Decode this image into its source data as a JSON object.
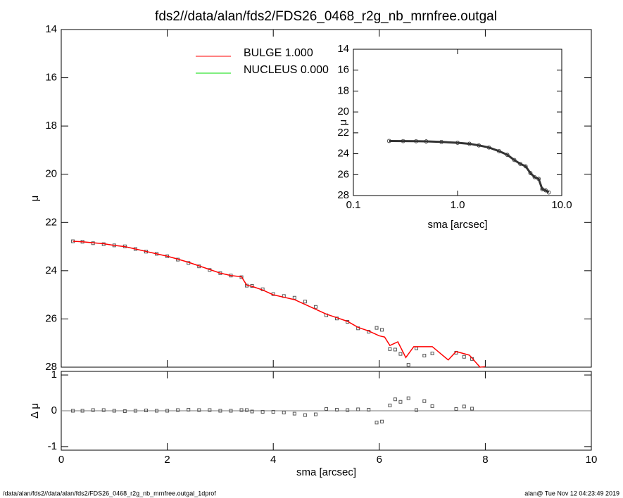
{
  "chart_data": [
    {
      "type": "scatter",
      "title": "fds2//data/alan/fds2/FDS26_0468_r2g_nb_mrnfree.outgal",
      "y_label": "μ",
      "xlim": [
        0,
        10
      ],
      "xticks": [
        0,
        2,
        4,
        6,
        8,
        10
      ],
      "ylim": [
        14,
        28
      ],
      "yticks": [
        14,
        16,
        18,
        20,
        22,
        24,
        26,
        28
      ],
      "y_reversed": true,
      "legend": [
        {
          "label": "BULGE  1.000",
          "color": "#ff0000"
        },
        {
          "label": "NUCLEUS  0.000",
          "color": "#00dd00"
        }
      ],
      "series": [
        {
          "style": "squares",
          "color": "#555555",
          "x": [
            0.22,
            0.4,
            0.6,
            0.8,
            1.0,
            1.2,
            1.4,
            1.6,
            1.8,
            2.0,
            2.2,
            2.4,
            2.6,
            2.8,
            3.0,
            3.2,
            3.4,
            3.5,
            3.6,
            3.8,
            4.0,
            4.2,
            4.4,
            4.6,
            4.8,
            5.0,
            5.2,
            5.4,
            5.6,
            5.8,
            5.95,
            6.05,
            6.2,
            6.3,
            6.4,
            6.55,
            6.7,
            6.85,
            7.0,
            7.45,
            7.6,
            7.75
          ],
          "values": [
            22.78,
            22.8,
            22.86,
            22.9,
            22.95,
            22.99,
            23.1,
            23.21,
            23.3,
            23.4,
            23.54,
            23.68,
            23.82,
            23.97,
            24.1,
            24.2,
            24.27,
            24.62,
            24.63,
            24.77,
            24.97,
            25.05,
            25.12,
            25.28,
            25.5,
            25.85,
            25.98,
            26.12,
            26.39,
            26.53,
            26.37,
            26.45,
            27.25,
            27.27,
            27.45,
            27.9,
            27.22,
            27.52,
            27.43,
            27.4,
            27.57,
            27.66
          ]
        },
        {
          "style": "line",
          "color": "#ff0000",
          "x": [
            0.22,
            0.4,
            0.6,
            0.8,
            1.0,
            1.2,
            1.4,
            1.6,
            1.8,
            2.0,
            2.2,
            2.4,
            2.6,
            2.8,
            3.0,
            3.2,
            3.4,
            3.5,
            3.6,
            3.8,
            4.0,
            4.2,
            4.4,
            4.6,
            4.8,
            5.0,
            5.2,
            5.4,
            5.6,
            5.8,
            6.0,
            6.1,
            6.2,
            6.35,
            6.5,
            6.65,
            7.0,
            7.3,
            7.45,
            7.7,
            7.9,
            8.0
          ],
          "values": [
            22.78,
            22.8,
            22.84,
            22.88,
            22.95,
            23.0,
            23.1,
            23.2,
            23.3,
            23.4,
            23.52,
            23.65,
            23.8,
            23.95,
            24.1,
            24.2,
            24.25,
            24.6,
            24.65,
            24.8,
            25.0,
            25.1,
            25.2,
            25.4,
            25.6,
            25.8,
            25.95,
            26.1,
            26.35,
            26.5,
            26.7,
            26.75,
            27.1,
            26.95,
            27.6,
            27.15,
            27.15,
            27.7,
            27.35,
            27.5,
            28.0,
            27.98
          ]
        }
      ]
    },
    {
      "type": "scatter",
      "x_label": "sma [arcsec]",
      "y_label": "Δ μ",
      "xlim": [
        0,
        10
      ],
      "xticks": [
        0,
        2,
        4,
        6,
        8,
        10
      ],
      "ylim": [
        -1.1,
        1.1
      ],
      "yticks": [
        -1,
        0,
        1
      ],
      "zero_line": true,
      "series": [
        {
          "style": "squares",
          "color": "#555555",
          "x": [
            0.22,
            0.4,
            0.6,
            0.8,
            1.0,
            1.2,
            1.4,
            1.6,
            1.8,
            2.0,
            2.2,
            2.4,
            2.6,
            2.8,
            3.0,
            3.2,
            3.4,
            3.5,
            3.6,
            3.8,
            4.0,
            4.2,
            4.4,
            4.6,
            4.8,
            5.0,
            5.2,
            5.4,
            5.6,
            5.8,
            5.95,
            6.05,
            6.2,
            6.3,
            6.4,
            6.55,
            6.7,
            6.85,
            7.0,
            7.45,
            7.6,
            7.75
          ],
          "values": [
            0,
            0,
            0.02,
            0.02,
            0,
            -0.01,
            0,
            0.01,
            0,
            0,
            0.02,
            0.03,
            0.02,
            0.02,
            0,
            0,
            0.02,
            0.02,
            -0.02,
            -0.03,
            -0.03,
            -0.05,
            -0.08,
            -0.12,
            -0.1,
            0.05,
            0.03,
            0.02,
            0.04,
            0.03,
            -0.33,
            -0.3,
            0.15,
            0.32,
            0.25,
            0.35,
            0.02,
            0.27,
            0.13,
            0.05,
            0.12,
            0.06
          ]
        }
      ]
    },
    {
      "type": "scatter",
      "x_label": "sma [arcsec]",
      "y_label": "μ",
      "xlim": [
        0.1,
        10
      ],
      "xticks": [
        0.1,
        {
          "value": 1,
          "label": "1.0"
        },
        {
          "value": 10,
          "label": "10.0"
        }
      ],
      "xlog": true,
      "ylim": [
        14,
        28
      ],
      "yticks": [
        14,
        16,
        18,
        20,
        22,
        24,
        26,
        28
      ],
      "y_reversed": true,
      "series": [
        {
          "style": "circles",
          "color": "#333333",
          "x": [
            0.22,
            0.3,
            0.4,
            0.5,
            0.7,
            1.0,
            1.3,
            1.6,
            2.0,
            2.5,
            3.0,
            3.5,
            4.0,
            4.5,
            5.0,
            5.5,
            6.0,
            6.5,
            7.0,
            7.5
          ],
          "values": [
            22.78,
            22.79,
            22.8,
            22.82,
            22.87,
            22.95,
            23.05,
            23.2,
            23.4,
            23.75,
            24.1,
            24.6,
            24.97,
            25.2,
            25.85,
            26.25,
            26.4,
            27.4,
            27.5,
            27.7
          ]
        }
      ]
    }
  ],
  "footer": {
    "left": "/data/alan/fds2//data/alan/fds2/FDS26_0468_r2g_nb_mrnfree.outgal_1dprof",
    "right": "alan@  Tue Nov 12 04:23:49 2019"
  }
}
